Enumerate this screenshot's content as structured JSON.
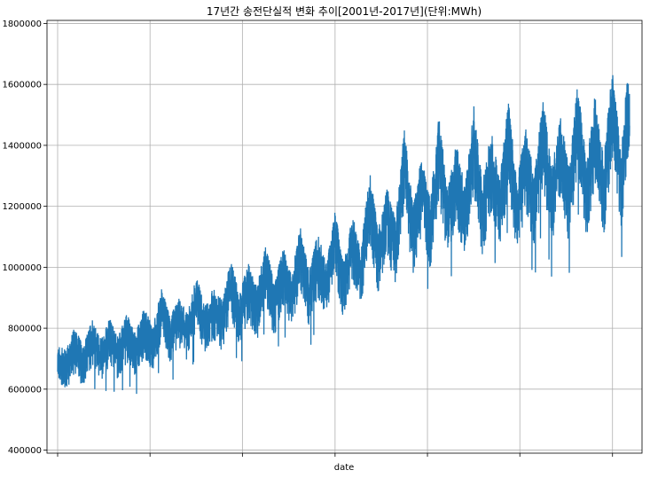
{
  "chart_data": {
    "type": "line",
    "title": "17년간 송전단실적 변화 추이[2001년-2017년](단위:MWh)",
    "xlabel": "date",
    "ylabel": "",
    "x_range": [
      "2001-01-01",
      "2017-06-30"
    ],
    "ylim": [
      390000,
      1810000
    ],
    "yticks": [
      400000,
      600000,
      800000,
      1000000,
      1200000,
      1400000,
      1600000,
      1800000
    ],
    "ytick_labels": [
      "400000",
      "600000",
      "800000",
      "1000000",
      "1200000",
      "1400000",
      "1600000",
      "1800000"
    ],
    "xtick_dates": [
      "2001-01-01",
      "2003-09-01",
      "2006-05-01",
      "2009-01-01",
      "2011-09-01",
      "2014-05-01",
      "2017-01-01"
    ],
    "grid": true,
    "line_color": "#1f77b4",
    "series": [
      {
        "x": [
          "2001-01",
          "2001-04",
          "2001-07",
          "2001-10",
          "2002-01",
          "2002-04",
          "2002-07",
          "2002-10",
          "2003-01",
          "2003-04",
          "2003-07",
          "2003-10",
          "2004-01",
          "2004-04",
          "2004-07",
          "2004-10",
          "2005-01",
          "2005-04",
          "2005-07",
          "2005-10",
          "2006-01",
          "2006-04",
          "2006-07",
          "2006-10",
          "2007-01",
          "2007-04",
          "2007-07",
          "2007-10",
          "2008-01",
          "2008-04",
          "2008-07",
          "2008-10",
          "2009-01",
          "2009-04",
          "2009-07",
          "2009-10",
          "2010-01",
          "2010-04",
          "2010-07",
          "2010-10",
          "2011-01",
          "2011-04",
          "2011-07",
          "2011-10",
          "2012-01",
          "2012-04",
          "2012-07",
          "2012-10",
          "2013-01",
          "2013-04",
          "2013-07",
          "2013-10",
          "2014-01",
          "2014-04",
          "2014-07",
          "2014-10",
          "2015-01",
          "2015-04",
          "2015-07",
          "2015-10",
          "2016-01",
          "2016-04",
          "2016-07",
          "2016-10",
          "2017-01",
          "2017-04",
          "2017-06"
        ],
        "values": [
          700000,
          690000,
          760000,
          700000,
          790000,
          720000,
          790000,
          730000,
          800000,
          740000,
          820000,
          760000,
          880000,
          790000,
          850000,
          800000,
          920000,
          830000,
          880000,
          840000,
          970000,
          860000,
          960000,
          880000,
          1030000,
          890000,
          1010000,
          920000,
          1080000,
          930000,
          1050000,
          960000,
          1120000,
          960000,
          1110000,
          1000000,
          1250000,
          1060000,
          1200000,
          1090000,
          1380000,
          1130000,
          1290000,
          1150000,
          1420000,
          1180000,
          1330000,
          1190000,
          1450000,
          1200000,
          1370000,
          1220000,
          1460000,
          1210000,
          1380000,
          1230000,
          1480000,
          1240000,
          1420000,
          1250000,
          1520000,
          1270000,
          1480000,
          1280000,
          1570000,
          1300000,
          1520000
        ]
      }
    ]
  }
}
